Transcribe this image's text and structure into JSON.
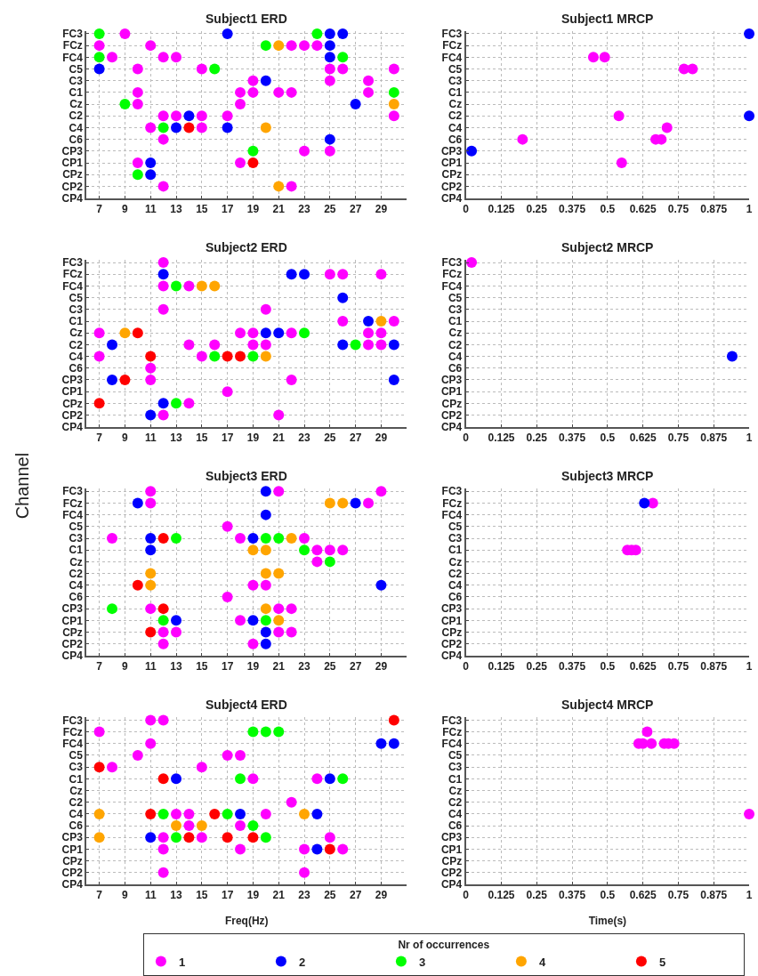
{
  "chart_data": [
    {
      "type": "scatter",
      "orientation": "horizontal",
      "title": "Subject1 ERD",
      "legend": "bottom",
      "legend_title": "Nr of occurrences",
      "xlim": [
        6,
        31
      ],
      "xticks": [
        7,
        9,
        11,
        13,
        15,
        17,
        19,
        21,
        23,
        25,
        27,
        29
      ],
      "categories": [
        "FC3",
        "FCz",
        "FC4",
        "C5",
        "C3",
        "C1",
        "Cz",
        "C2",
        "C4",
        "C6",
        "CP3",
        "CP1",
        "CPz",
        "CP2",
        "CP4"
      ],
      "grid": true,
      "marker": "circle",
      "series": [
        {
          "name": "1",
          "color": "#ff00ff",
          "values": [
            9,
            7,
            8,
            10,
            19,
            10,
            10,
            12,
            11,
            12,
            23,
            10,
            null,
            12,
            null
          ]
        },
        {
          "color": "#ff00ff",
          "values": [
            null,
            11,
            12,
            15,
            25,
            18,
            18,
            13,
            15,
            null,
            25,
            18,
            null,
            22,
            null
          ]
        },
        {
          "color": "#ff00ff",
          "values": [
            null,
            22,
            13,
            25,
            28,
            19,
            null,
            15,
            null,
            null,
            null,
            null,
            null,
            null,
            null
          ]
        },
        {
          "color": "#ff00ff",
          "values": [
            null,
            23,
            null,
            26,
            null,
            21,
            null,
            17,
            null,
            null,
            null,
            null,
            null,
            null,
            null
          ]
        },
        {
          "color": "#ff00ff",
          "values": [
            null,
            24,
            null,
            30,
            null,
            22,
            null,
            30,
            null,
            null,
            null,
            null,
            null,
            null,
            null
          ]
        },
        {
          "color": "#ff00ff",
          "values": [
            null,
            null,
            null,
            null,
            null,
            28,
            null,
            null,
            null,
            null,
            null,
            null,
            null,
            null,
            null
          ]
        },
        {
          "name": "2",
          "color": "#0000ff",
          "values": [
            17,
            25,
            25,
            7,
            20,
            null,
            27,
            14,
            13,
            25,
            null,
            11,
            11,
            null,
            null
          ]
        },
        {
          "color": "#0000ff",
          "values": [
            25,
            null,
            null,
            null,
            null,
            null,
            null,
            null,
            17,
            null,
            null,
            null,
            null,
            null,
            null
          ]
        },
        {
          "color": "#0000ff",
          "values": [
            26,
            null,
            null,
            null,
            null,
            null,
            null,
            null,
            null,
            null,
            null,
            null,
            null,
            null,
            null
          ]
        },
        {
          "name": "3",
          "color": "#00ff00",
          "values": [
            7,
            20,
            7,
            16,
            null,
            30,
            9,
            null,
            12,
            null,
            19,
            null,
            10,
            null,
            null
          ]
        },
        {
          "color": "#00ff00",
          "values": [
            24,
            null,
            26,
            null,
            null,
            null,
            null,
            null,
            null,
            null,
            null,
            null,
            null,
            null,
            null
          ]
        },
        {
          "name": "4",
          "color": "#ffa500",
          "values": [
            null,
            21,
            null,
            null,
            null,
            null,
            30,
            null,
            20,
            null,
            null,
            null,
            null,
            21,
            null
          ]
        },
        {
          "name": "5",
          "color": "#ff0000",
          "values": [
            null,
            null,
            null,
            null,
            null,
            null,
            null,
            null,
            14,
            null,
            null,
            19,
            null,
            null,
            null
          ]
        }
      ]
    },
    {
      "type": "scatter",
      "orientation": "horizontal",
      "title": "Subject1 MRCP",
      "xlim": [
        0,
        1
      ],
      "xticks": [
        0,
        0.125,
        0.25,
        0.375,
        0.5,
        0.625,
        0.75,
        0.875,
        1
      ],
      "categories": [
        "FC3",
        "FCz",
        "FC4",
        "C5",
        "C3",
        "C1",
        "Cz",
        "C2",
        "C4",
        "C6",
        "CP3",
        "CP1",
        "CPz",
        "CP2",
        "CP4"
      ],
      "grid": true,
      "marker": "circle",
      "series": [
        {
          "color": "#ff00ff",
          "values": [
            null,
            null,
            0.45,
            0.77,
            null,
            null,
            null,
            0.54,
            0.71,
            0.2,
            null,
            0.55,
            null,
            null,
            null
          ]
        },
        {
          "color": "#ff00ff",
          "values": [
            null,
            null,
            0.49,
            0.8,
            null,
            null,
            null,
            null,
            null,
            0.67,
            null,
            null,
            null,
            null,
            null
          ]
        },
        {
          "color": "#ff00ff",
          "values": [
            null,
            null,
            null,
            null,
            null,
            null,
            null,
            null,
            null,
            0.69,
            null,
            null,
            null,
            null,
            null
          ]
        },
        {
          "color": "#0000ff",
          "values": [
            1,
            null,
            null,
            null,
            null,
            null,
            null,
            1,
            null,
            null,
            0.02,
            null,
            null,
            null,
            null
          ]
        }
      ]
    },
    {
      "type": "scatter",
      "orientation": "horizontal",
      "title": "Subject2 ERD",
      "ylabel": "Channel",
      "xlim": [
        6,
        31
      ],
      "xticks": [
        7,
        9,
        11,
        13,
        15,
        17,
        19,
        21,
        23,
        25,
        27,
        29
      ],
      "categories": [
        "FC3",
        "FCz",
        "FC4",
        "C5",
        "C3",
        "C1",
        "Cz",
        "C2",
        "C4",
        "C6",
        "CP3",
        "CP1",
        "CPz",
        "CP2",
        "CP4"
      ],
      "grid": true,
      "marker": "circle",
      "series": [
        {
          "color": "#ff00ff",
          "values": [
            12,
            25,
            12,
            null,
            12,
            26,
            7,
            14,
            7,
            11,
            11,
            17,
            14,
            12,
            null
          ]
        },
        {
          "color": "#ff00ff",
          "values": [
            null,
            26,
            14,
            null,
            20,
            30,
            18,
            16,
            15,
            null,
            22,
            null,
            null,
            21,
            null
          ]
        },
        {
          "color": "#ff00ff",
          "values": [
            null,
            29,
            null,
            null,
            null,
            null,
            19,
            19,
            null,
            null,
            null,
            null,
            null,
            null,
            null
          ]
        },
        {
          "color": "#ff00ff",
          "values": [
            null,
            null,
            null,
            null,
            null,
            null,
            22,
            20,
            null,
            null,
            null,
            null,
            null,
            null,
            null
          ]
        },
        {
          "color": "#ff00ff",
          "values": [
            null,
            null,
            null,
            null,
            null,
            null,
            28,
            28,
            null,
            null,
            null,
            null,
            null,
            null,
            null
          ]
        },
        {
          "color": "#ff00ff",
          "values": [
            null,
            null,
            null,
            null,
            null,
            null,
            29,
            29,
            null,
            null,
            null,
            null,
            null,
            null,
            null
          ]
        },
        {
          "color": "#0000ff",
          "values": [
            null,
            12,
            null,
            26,
            null,
            28,
            20,
            8,
            null,
            null,
            8,
            null,
            12,
            11,
            null
          ]
        },
        {
          "color": "#0000ff",
          "values": [
            null,
            22,
            null,
            null,
            null,
            null,
            21,
            26,
            null,
            null,
            30,
            null,
            null,
            null,
            null
          ]
        },
        {
          "color": "#0000ff",
          "values": [
            null,
            23,
            null,
            null,
            null,
            null,
            null,
            30,
            null,
            null,
            null,
            null,
            null,
            null,
            null
          ]
        },
        {
          "color": "#00ff00",
          "values": [
            null,
            null,
            13,
            null,
            null,
            null,
            23,
            27,
            16,
            null,
            null,
            null,
            13,
            null,
            null
          ]
        },
        {
          "color": "#00ff00",
          "values": [
            null,
            null,
            null,
            null,
            null,
            null,
            null,
            null,
            19,
            null,
            null,
            null,
            null,
            null,
            null
          ]
        },
        {
          "color": "#ffa500",
          "values": [
            null,
            null,
            15,
            null,
            null,
            29,
            9,
            null,
            20,
            null,
            null,
            null,
            null,
            null,
            null
          ]
        },
        {
          "color": "#ffa500",
          "values": [
            null,
            null,
            16,
            null,
            null,
            null,
            null,
            null,
            null,
            null,
            null,
            null,
            null,
            null,
            null
          ]
        },
        {
          "color": "#ff0000",
          "values": [
            null,
            null,
            null,
            null,
            null,
            null,
            10,
            null,
            11,
            null,
            9,
            null,
            7,
            null,
            null
          ]
        },
        {
          "color": "#ff0000",
          "values": [
            null,
            null,
            null,
            null,
            null,
            null,
            null,
            null,
            17,
            null,
            null,
            null,
            null,
            null,
            null
          ]
        },
        {
          "color": "#ff0000",
          "values": [
            null,
            null,
            null,
            null,
            null,
            null,
            null,
            null,
            18,
            null,
            null,
            null,
            null,
            null,
            null
          ]
        }
      ]
    },
    {
      "type": "scatter",
      "orientation": "horizontal",
      "title": "Subject2 MRCP",
      "xlim": [
        0,
        1
      ],
      "xticks": [
        0,
        0.125,
        0.25,
        0.375,
        0.5,
        0.625,
        0.75,
        0.875,
        1
      ],
      "categories": [
        "FC3",
        "FCz",
        "FC4",
        "C5",
        "C3",
        "C1",
        "Cz",
        "C2",
        "C4",
        "C6",
        "CP3",
        "CP1",
        "CPz",
        "CP2",
        "CP4"
      ],
      "grid": true,
      "marker": "circle",
      "series": [
        {
          "color": "#ff00ff",
          "values": [
            0.02,
            null,
            null,
            null,
            null,
            null,
            null,
            null,
            null,
            null,
            null,
            null,
            null,
            null,
            null
          ]
        },
        {
          "color": "#0000ff",
          "values": [
            null,
            null,
            null,
            null,
            null,
            null,
            null,
            null,
            0.94,
            null,
            null,
            null,
            null,
            null,
            null
          ]
        }
      ]
    },
    {
      "type": "scatter",
      "orientation": "horizontal",
      "title": "Subject3 ERD",
      "xlim": [
        6,
        31
      ],
      "xticks": [
        7,
        9,
        11,
        13,
        15,
        17,
        19,
        21,
        23,
        25,
        27,
        29
      ],
      "categories": [
        "FC3",
        "FCz",
        "FC4",
        "C5",
        "C3",
        "C1",
        "Cz",
        "C2",
        "C4",
        "C6",
        "CP3",
        "CP1",
        "CPz",
        "CP2",
        "CP4"
      ],
      "grid": true,
      "marker": "circle",
      "series": [
        {
          "color": "#ff00ff",
          "values": [
            11,
            11,
            null,
            17,
            8,
            24,
            24,
            null,
            19,
            17,
            11,
            18,
            12,
            12,
            null
          ]
        },
        {
          "color": "#ff00ff",
          "values": [
            21,
            28,
            null,
            null,
            18,
            25,
            null,
            null,
            20,
            null,
            21,
            null,
            13,
            19,
            null
          ]
        },
        {
          "color": "#ff00ff",
          "values": [
            29,
            null,
            null,
            null,
            23,
            26,
            null,
            null,
            null,
            null,
            22,
            null,
            21,
            null,
            null
          ]
        },
        {
          "color": "#ff00ff",
          "values": [
            null,
            null,
            null,
            null,
            null,
            null,
            null,
            null,
            null,
            null,
            null,
            null,
            22,
            null,
            null
          ]
        },
        {
          "color": "#0000ff",
          "values": [
            20,
            10,
            20,
            null,
            11,
            11,
            null,
            null,
            29,
            null,
            null,
            13,
            20,
            20,
            null
          ]
        },
        {
          "color": "#0000ff",
          "values": [
            null,
            27,
            null,
            null,
            19,
            null,
            null,
            null,
            null,
            null,
            null,
            19,
            null,
            null,
            null
          ]
        },
        {
          "color": "#00ff00",
          "values": [
            null,
            null,
            null,
            null,
            13,
            23,
            25,
            null,
            null,
            null,
            8,
            12,
            null,
            null,
            null
          ]
        },
        {
          "color": "#00ff00",
          "values": [
            null,
            null,
            null,
            null,
            20,
            null,
            null,
            null,
            null,
            null,
            null,
            20,
            null,
            null,
            null
          ]
        },
        {
          "color": "#00ff00",
          "values": [
            null,
            null,
            null,
            null,
            21,
            null,
            null,
            null,
            null,
            null,
            null,
            null,
            null,
            null,
            null
          ]
        },
        {
          "color": "#ffa500",
          "values": [
            null,
            25,
            null,
            null,
            22,
            19,
            null,
            11,
            11,
            null,
            20,
            21,
            null,
            null,
            null
          ]
        },
        {
          "color": "#ffa500",
          "values": [
            null,
            26,
            null,
            null,
            null,
            20,
            null,
            20,
            null,
            null,
            null,
            null,
            null,
            null,
            null
          ]
        },
        {
          "color": "#ffa500",
          "values": [
            null,
            null,
            null,
            null,
            null,
            null,
            null,
            21,
            null,
            null,
            null,
            null,
            null,
            null,
            null
          ]
        },
        {
          "color": "#ff0000",
          "values": [
            null,
            null,
            null,
            null,
            12,
            null,
            null,
            null,
            10,
            null,
            12,
            null,
            11,
            null,
            null
          ]
        }
      ]
    },
    {
      "type": "scatter",
      "orientation": "horizontal",
      "title": "Subject3 MRCP",
      "xlim": [
        0,
        1
      ],
      "xticks": [
        0,
        0.125,
        0.25,
        0.375,
        0.5,
        0.625,
        0.75,
        0.875,
        1
      ],
      "categories": [
        "FC3",
        "FCz",
        "FC4",
        "C5",
        "C3",
        "C1",
        "Cz",
        "C2",
        "C4",
        "C6",
        "CP3",
        "CP1",
        "CPz",
        "CP2",
        "CP4"
      ],
      "grid": true,
      "marker": "circle",
      "series": [
        {
          "color": "#ff00ff",
          "values": [
            null,
            0.66,
            null,
            null,
            null,
            0.57,
            null,
            null,
            null,
            null,
            null,
            null,
            null,
            null,
            null
          ]
        },
        {
          "color": "#ff00ff",
          "values": [
            null,
            null,
            null,
            null,
            null,
            0.585,
            null,
            null,
            null,
            null,
            null,
            null,
            null,
            null,
            null
          ]
        },
        {
          "color": "#ff00ff",
          "values": [
            null,
            null,
            null,
            null,
            null,
            0.6,
            null,
            null,
            null,
            null,
            null,
            null,
            null,
            null,
            null
          ]
        },
        {
          "color": "#0000ff",
          "values": [
            null,
            0.63,
            null,
            null,
            null,
            null,
            null,
            null,
            null,
            null,
            null,
            null,
            null,
            null,
            null
          ]
        }
      ]
    },
    {
      "type": "scatter",
      "orientation": "horizontal",
      "title": "Subject4 ERD",
      "xlabel": "Freq(Hz)",
      "xlim": [
        6,
        31
      ],
      "xticks": [
        7,
        9,
        11,
        13,
        15,
        17,
        19,
        21,
        23,
        25,
        27,
        29
      ],
      "categories": [
        "FC3",
        "FCz",
        "FC4",
        "C5",
        "C3",
        "C1",
        "Cz",
        "C2",
        "C4",
        "C6",
        "CP3",
        "CP1",
        "CPz",
        "CP2",
        "CP4"
      ],
      "grid": true,
      "marker": "circle",
      "series": [
        {
          "color": "#ff00ff",
          "values": [
            11,
            7,
            11,
            10,
            8,
            19,
            null,
            22,
            13,
            14,
            12,
            12,
            null,
            12,
            null
          ]
        },
        {
          "color": "#ff00ff",
          "values": [
            12,
            null,
            null,
            17,
            15,
            24,
            null,
            null,
            14,
            18,
            15,
            18,
            null,
            23,
            null
          ]
        },
        {
          "color": "#ff00ff",
          "values": [
            null,
            null,
            null,
            18,
            null,
            null,
            null,
            null,
            20,
            null,
            25,
            23,
            null,
            null,
            null
          ]
        },
        {
          "color": "#ff00ff",
          "values": [
            null,
            null,
            null,
            null,
            null,
            null,
            null,
            null,
            null,
            null,
            null,
            26,
            null,
            null,
            null
          ]
        },
        {
          "color": "#0000ff",
          "values": [
            null,
            null,
            29,
            null,
            null,
            13,
            null,
            null,
            18,
            null,
            11,
            24,
            null,
            null,
            null
          ]
        },
        {
          "color": "#0000ff",
          "values": [
            null,
            null,
            30,
            null,
            null,
            25,
            null,
            null,
            24,
            null,
            null,
            null,
            null,
            null,
            null
          ]
        },
        {
          "color": "#00ff00",
          "values": [
            null,
            19,
            null,
            null,
            null,
            18,
            null,
            null,
            12,
            19,
            13,
            null,
            null,
            null,
            null
          ]
        },
        {
          "color": "#00ff00",
          "values": [
            null,
            20,
            null,
            null,
            null,
            26,
            null,
            null,
            17,
            null,
            20,
            null,
            null,
            null,
            null
          ]
        },
        {
          "color": "#00ff00",
          "values": [
            null,
            21,
            null,
            null,
            null,
            null,
            null,
            null,
            null,
            null,
            null,
            null,
            null,
            null,
            null
          ]
        },
        {
          "color": "#ffa500",
          "values": [
            null,
            null,
            null,
            null,
            null,
            null,
            null,
            null,
            7,
            13,
            7,
            null,
            null,
            null,
            null
          ]
        },
        {
          "color": "#ffa500",
          "values": [
            null,
            null,
            null,
            null,
            null,
            null,
            null,
            null,
            23,
            15,
            null,
            null,
            null,
            null,
            null
          ]
        },
        {
          "color": "#ff0000",
          "values": [
            30,
            null,
            null,
            null,
            7,
            12,
            null,
            null,
            11,
            null,
            14,
            25,
            null,
            null,
            null
          ]
        },
        {
          "color": "#ff0000",
          "values": [
            null,
            null,
            null,
            null,
            null,
            null,
            null,
            null,
            16,
            null,
            17,
            null,
            null,
            null,
            null
          ]
        },
        {
          "color": "#ff0000",
          "values": [
            null,
            null,
            null,
            null,
            null,
            null,
            null,
            null,
            null,
            null,
            19,
            null,
            null,
            null,
            null
          ]
        }
      ]
    },
    {
      "type": "scatter",
      "orientation": "horizontal",
      "title": "Subject4 MRCP",
      "xlabel": "Time(s)",
      "xlim": [
        0,
        1
      ],
      "xticks": [
        0,
        0.125,
        0.25,
        0.375,
        0.5,
        0.625,
        0.75,
        0.875,
        1
      ],
      "categories": [
        "FC3",
        "FCz",
        "FC4",
        "C5",
        "C3",
        "C1",
        "Cz",
        "C2",
        "C4",
        "C6",
        "CP3",
        "CP1",
        "CPz",
        "CP2",
        "CP4"
      ],
      "grid": true,
      "marker": "circle",
      "series": [
        {
          "color": "#ff00ff",
          "values": [
            null,
            0.64,
            0.61,
            null,
            null,
            null,
            null,
            null,
            1,
            null,
            null,
            null,
            null,
            null,
            null
          ]
        },
        {
          "color": "#ff00ff",
          "values": [
            null,
            null,
            0.625,
            null,
            null,
            null,
            null,
            null,
            null,
            null,
            null,
            null,
            null,
            null,
            null
          ]
        },
        {
          "color": "#ff00ff",
          "values": [
            null,
            null,
            0.655,
            null,
            null,
            null,
            null,
            null,
            null,
            null,
            null,
            null,
            null,
            null,
            null
          ]
        },
        {
          "color": "#ff00ff",
          "values": [
            null,
            null,
            0.7,
            null,
            null,
            null,
            null,
            null,
            null,
            null,
            null,
            null,
            null,
            null,
            null
          ]
        },
        {
          "color": "#ff00ff",
          "values": [
            null,
            null,
            0.715,
            null,
            null,
            null,
            null,
            null,
            null,
            null,
            null,
            null,
            null,
            null,
            null
          ]
        },
        {
          "color": "#ff00ff",
          "values": [
            null,
            null,
            0.735,
            null,
            null,
            null,
            null,
            null,
            null,
            null,
            null,
            null,
            null,
            null,
            null
          ]
        }
      ]
    }
  ]
}
